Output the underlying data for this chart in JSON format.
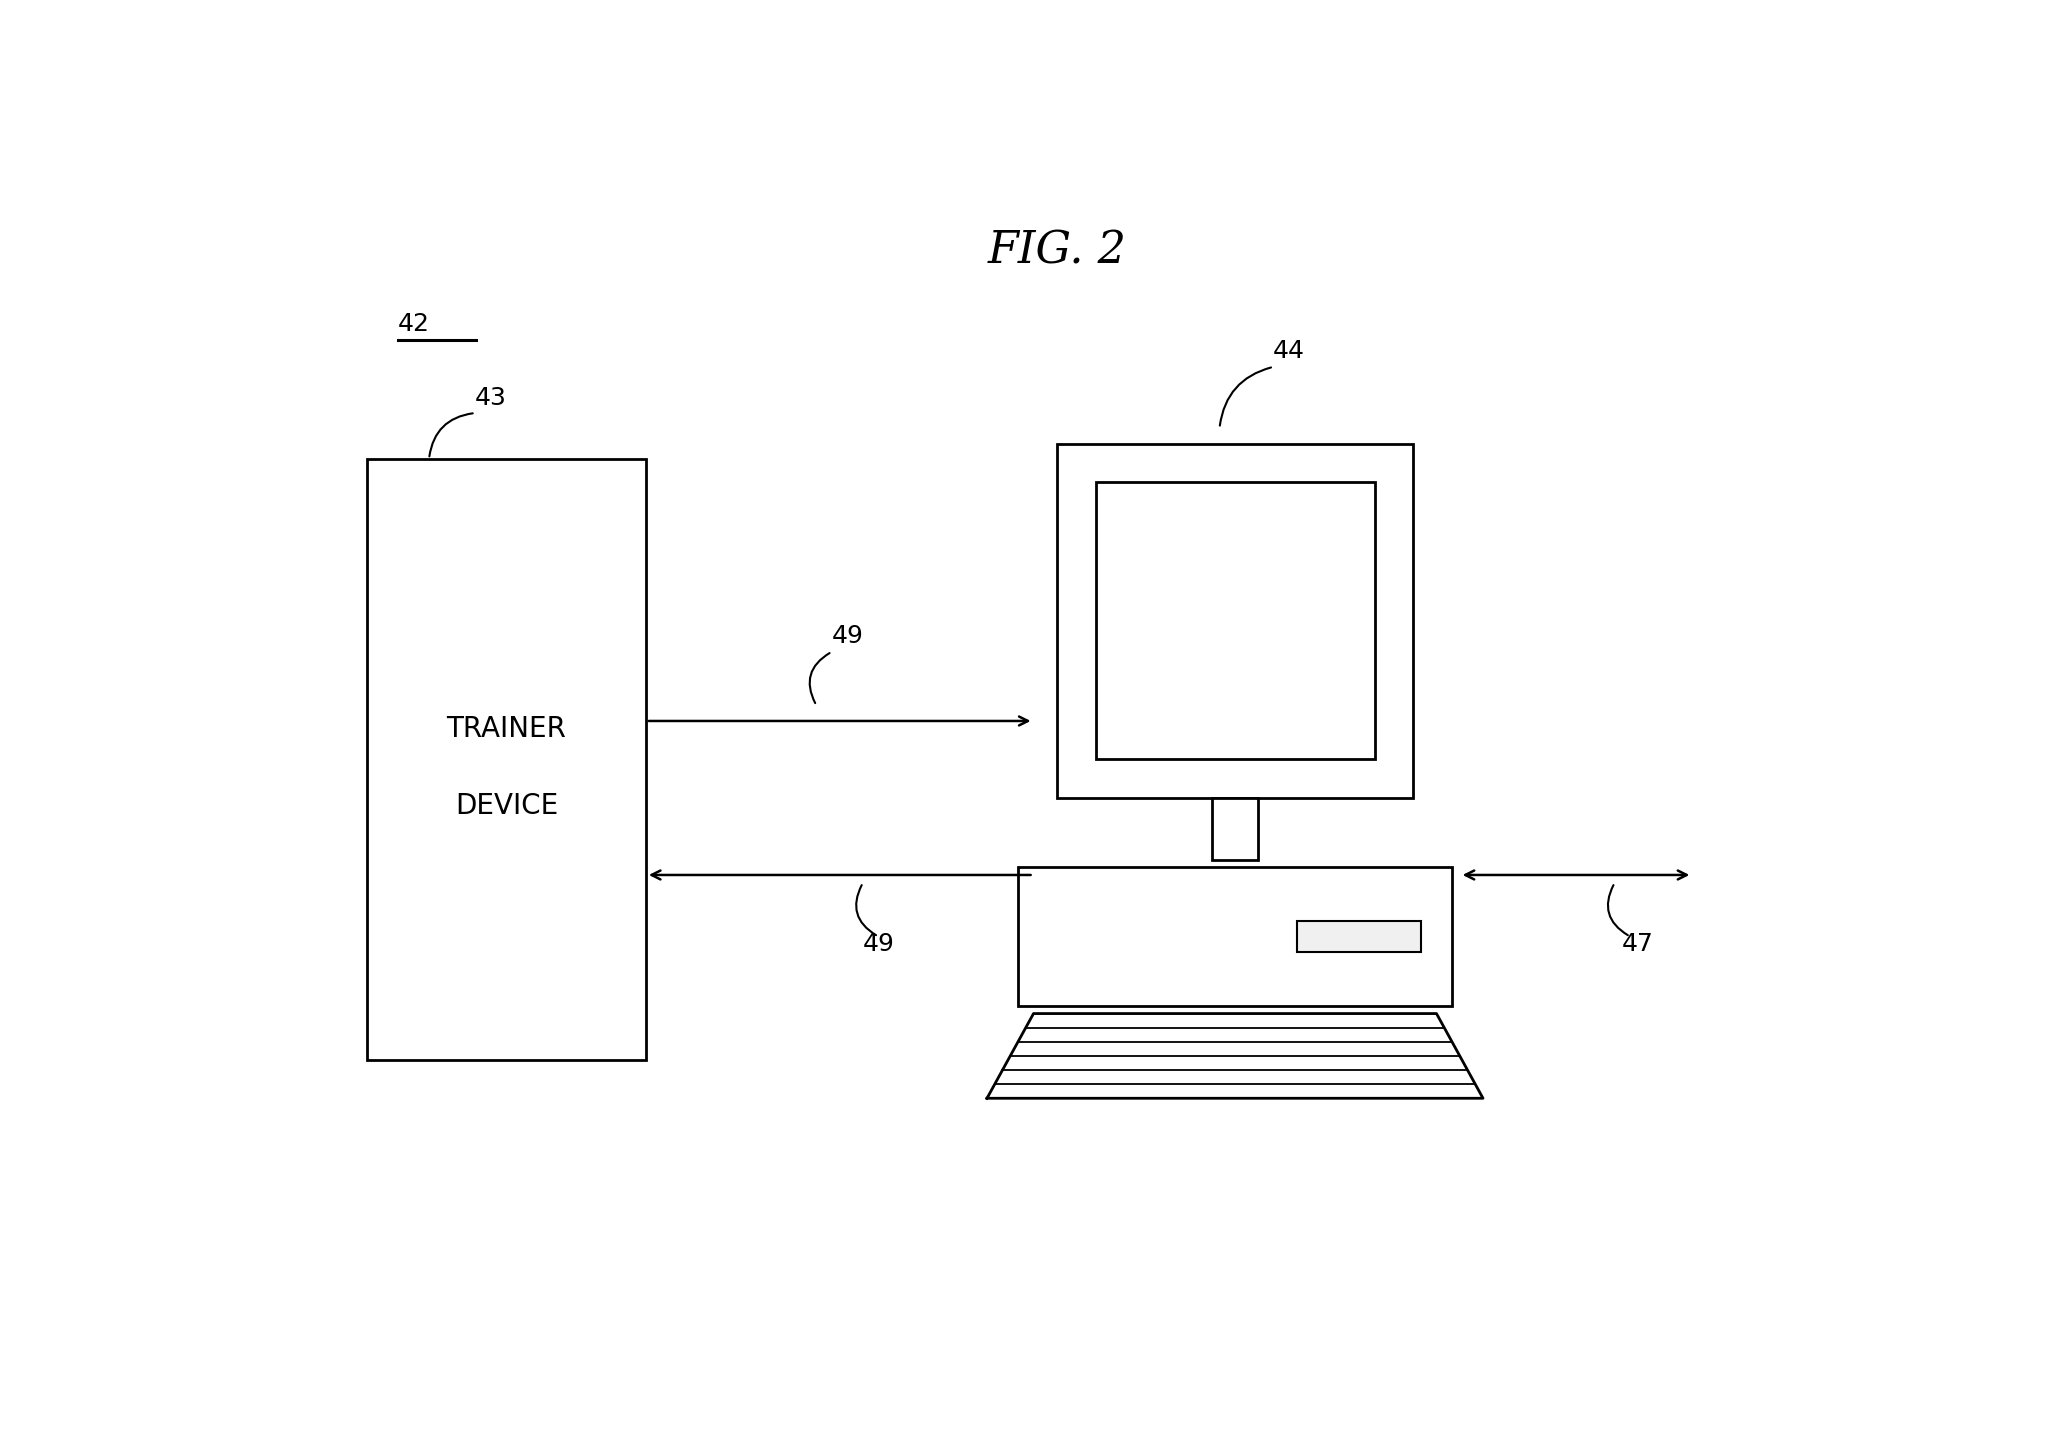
{
  "title": "FIG. 2",
  "label_42": "42",
  "label_43": "43",
  "label_44": "44",
  "label_47": "47",
  "label_49_top": "49",
  "label_49_bot": "49",
  "trainer_text_line1": "TRAINER",
  "trainer_text_line2": "DEVICE",
  "bg_color": "#ffffff",
  "line_color": "#000000",
  "fig_width": 20.68,
  "fig_height": 14.33
}
